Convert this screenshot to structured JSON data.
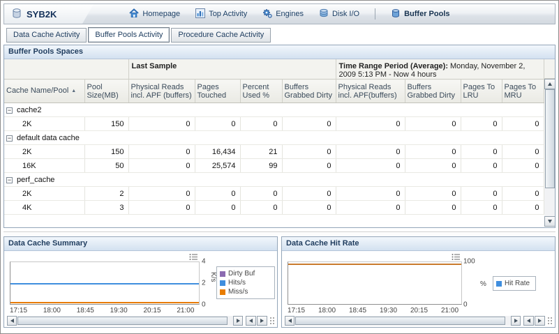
{
  "window": {
    "server_name": "SYB2K"
  },
  "nav": {
    "items": [
      {
        "label": "Homepage"
      },
      {
        "label": "Top Activity"
      },
      {
        "label": "Engines"
      },
      {
        "label": "Disk I/O"
      },
      {
        "label": "Buffer Pools"
      }
    ]
  },
  "tabs": [
    {
      "label": "Data Cache Activity"
    },
    {
      "label": "Buffer Pools Activity"
    },
    {
      "label": "Procedure Cache Activity"
    }
  ],
  "icons": {
    "collapse": "−",
    "sort_asc": "▲"
  },
  "buffer_pools": {
    "title": "Buffer Pools Spaces",
    "group_header": {
      "last_sample": "Last Sample",
      "time_range_bold": "Time Range Period (Average):",
      "time_range_text": "Monday, November 2, 2009 5:13 PM - Now 4 hours"
    },
    "columns": [
      "Cache Name/Pool",
      "Pool Size(MB)",
      "Physical Reads incl. APF (buffers)",
      "Pages Touched",
      "Percent Used %",
      "Buffers Grabbed Dirty",
      "Physical Reads incl. APF(buffers)",
      "Buffers Grabbed Dirty",
      "Pages To LRU",
      "Pages To MRU"
    ],
    "rows": [
      {
        "type": "group",
        "label": "cache2"
      },
      {
        "type": "pool",
        "cells": [
          "2K",
          "150",
          "0",
          "0",
          "0",
          "0",
          "0",
          "0",
          "0",
          "0"
        ]
      },
      {
        "type": "group",
        "label": "default data cache"
      },
      {
        "type": "pool",
        "cells": [
          "2K",
          "150",
          "0",
          "16,434",
          "21",
          "0",
          "0",
          "0",
          "0",
          "0"
        ]
      },
      {
        "type": "pool",
        "cells": [
          "16K",
          "50",
          "0",
          "25,574",
          "99",
          "0",
          "0",
          "0",
          "0",
          "0"
        ]
      },
      {
        "type": "group",
        "label": "perf_cache"
      },
      {
        "type": "pool",
        "cells": [
          "2K",
          "2",
          "0",
          "0",
          "0",
          "0",
          "0",
          "0",
          "0",
          "0"
        ]
      },
      {
        "type": "pool",
        "cells": [
          "4K",
          "3",
          "0",
          "0",
          "0",
          "0",
          "0",
          "0",
          "0",
          "0"
        ]
      }
    ]
  },
  "chart_data": [
    {
      "type": "line",
      "title": "Data Cache Summary",
      "ylabel": "K/s",
      "ylim": [
        0,
        4
      ],
      "y_ticks": [
        0,
        2,
        4
      ],
      "x_ticks": [
        "17:15",
        "18:00",
        "18:45",
        "19:30",
        "20:15",
        "21:00"
      ],
      "legend_position": "right",
      "series": [
        {
          "name": "Dirty Buf",
          "color": "#8b6bb1",
          "value": 0
        },
        {
          "name": "Hits/s",
          "color": "#3f8ede",
          "value": 2
        },
        {
          "name": "Miss/s",
          "color": "#e87c00",
          "value": 0.1
        }
      ]
    },
    {
      "type": "line",
      "title": "Data Cache Hit Rate",
      "ylabel": "%",
      "ylim": [
        0,
        100
      ],
      "y_ticks": [
        0,
        100
      ],
      "x_ticks": [
        "17:15",
        "18:00",
        "18:45",
        "19:30",
        "20:15",
        "21:00"
      ],
      "legend_position": "right",
      "series": [
        {
          "name": "Hit Rate",
          "swatch": "#3f8ede",
          "color": "#c97b2d",
          "value": 100
        }
      ]
    }
  ]
}
